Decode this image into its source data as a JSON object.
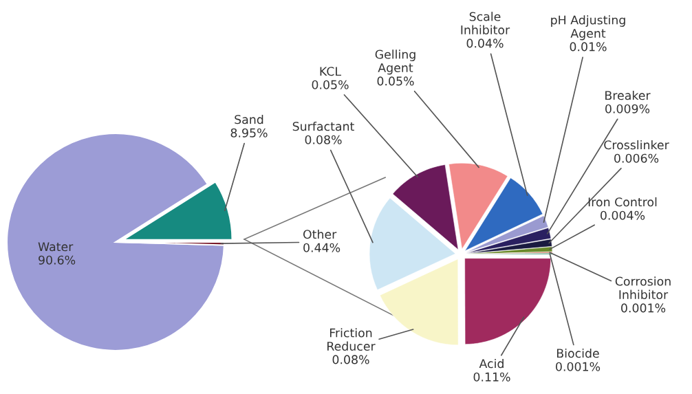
{
  "chart_data": [
    {
      "type": "pie",
      "categories": [
        "Water",
        "Other",
        "Sand"
      ],
      "values": [
        90.6,
        0.44,
        8.95
      ],
      "colors": [
        "#9c9cd6",
        "#7a1a2a",
        "#168a80"
      ],
      "value_labels": [
        "90.6%",
        "0.44%",
        "8.95%"
      ]
    },
    {
      "type": "pie",
      "categories": [
        "Acid",
        "Friction Reducer",
        "Surfactant",
        "KCL",
        "Gelling Agent",
        "Scale Inhibitor",
        "pH Adjusting Agent",
        "Breaker",
        "Crosslinker",
        "Iron Control",
        "Corrosion Inhibitor",
        "Biocide"
      ],
      "values": [
        0.11,
        0.08,
        0.08,
        0.05,
        0.05,
        0.04,
        0.01,
        0.009,
        0.006,
        0.004,
        0.001,
        0.001
      ],
      "colors": [
        "#a02a5e",
        "#f8f5c8",
        "#cde6f4",
        "#6a1a5a",
        "#f28a8a",
        "#2f6ac0",
        "#9a9ad0",
        "#2a2060",
        "#1a1a40",
        "#6a8a2a",
        "#c05a3a",
        "#40a080"
      ],
      "value_labels": [
        "0.11%",
        "0.08%",
        "0.08%",
        "0.05%",
        "0.05%",
        "0.04%",
        "0.01%",
        "0.009%",
        "0.006%",
        "0.004%",
        "0.001%",
        "0.001%"
      ]
    }
  ]
}
